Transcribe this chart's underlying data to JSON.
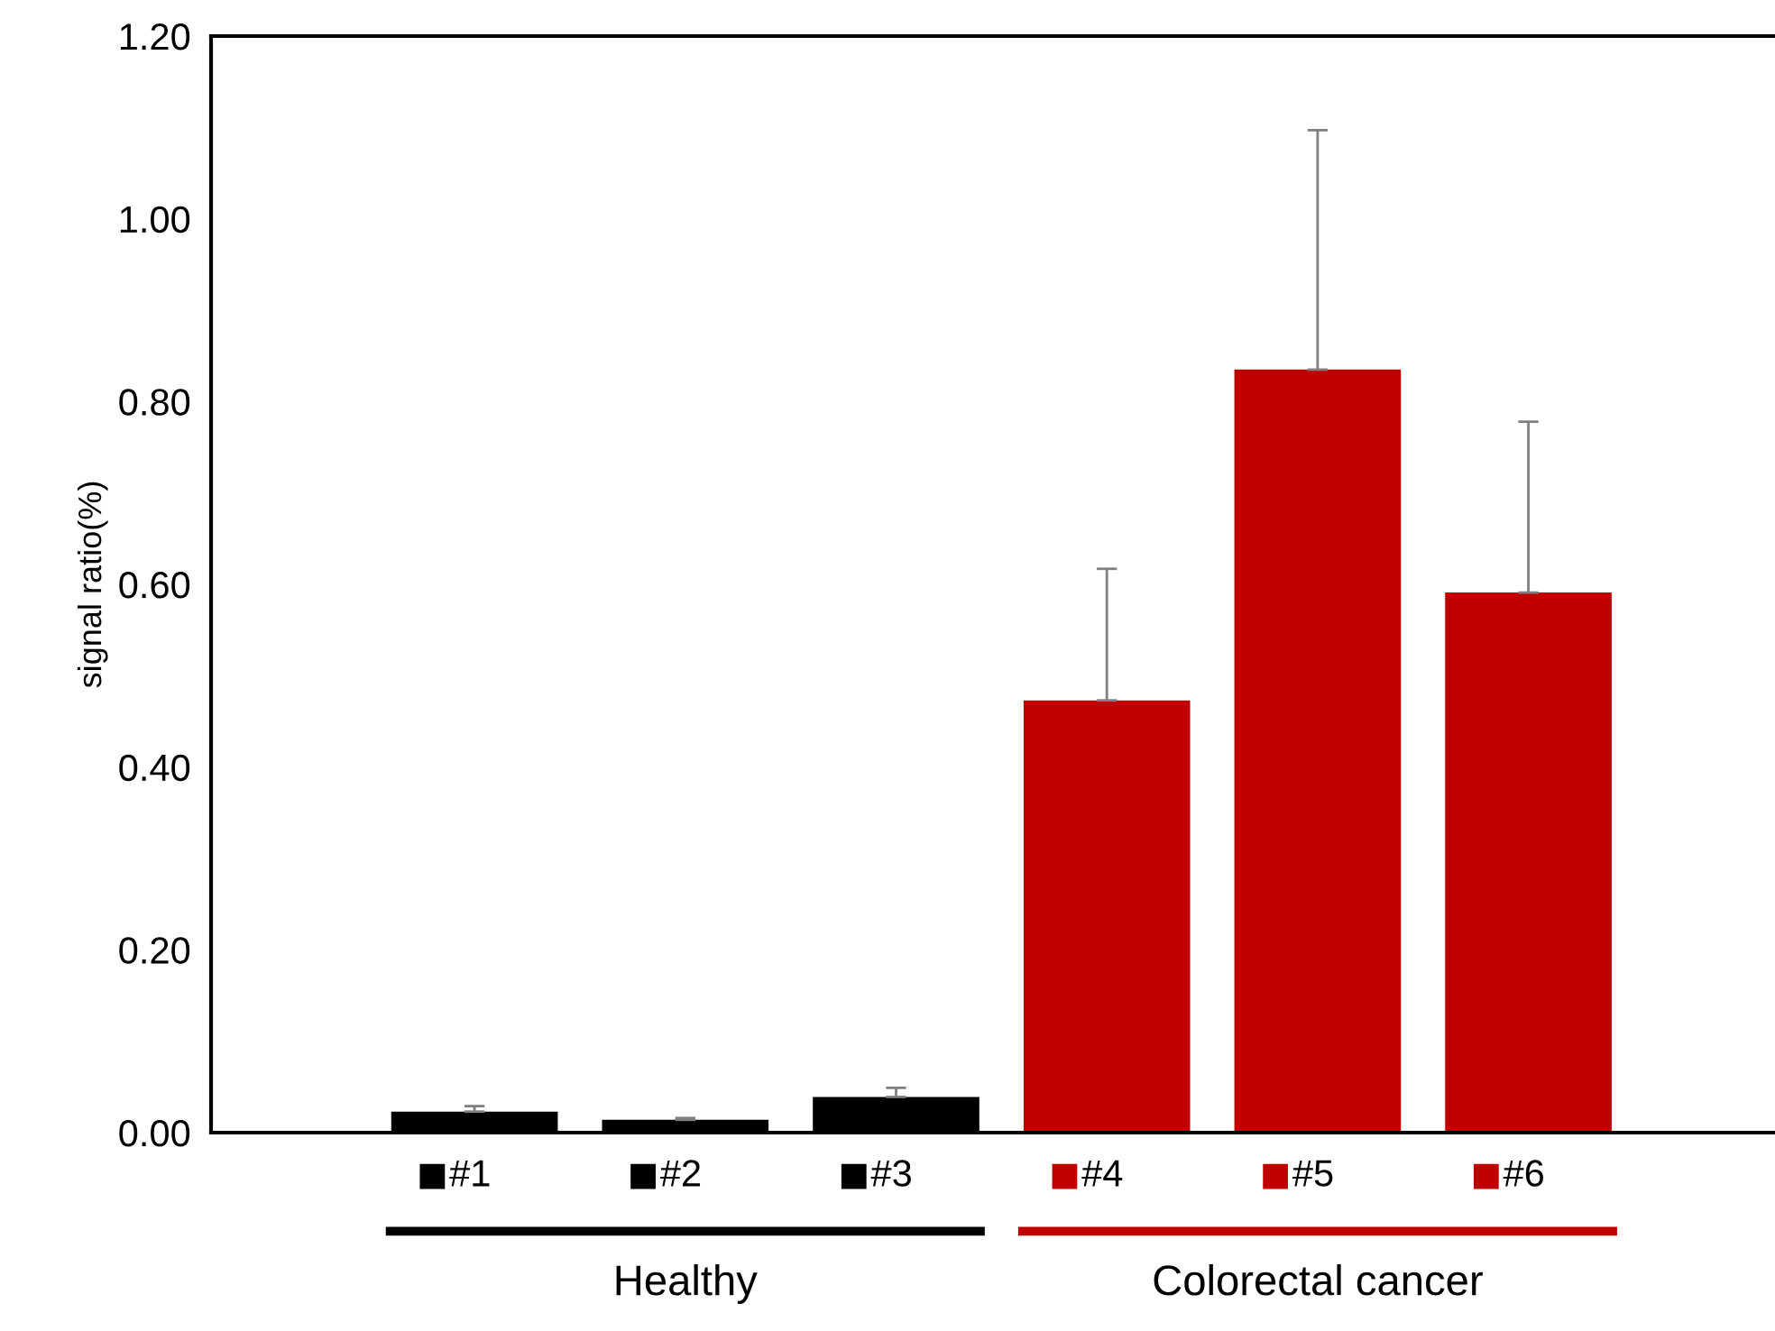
{
  "chart_data": {
    "type": "bar",
    "ylabel": "signal ratio(%)",
    "categories": [
      "#1",
      "#2",
      "#3",
      "#4",
      "#5",
      "#6"
    ],
    "values": [
      0.023,
      0.014,
      0.039,
      0.473,
      0.835,
      0.591
    ],
    "errors": [
      [
        0.023,
        0.029
      ],
      [
        0.014,
        0.016
      ],
      [
        0.039,
        0.049
      ],
      [
        0.473,
        0.617
      ],
      [
        0.835,
        1.097
      ],
      [
        0.591,
        0.778
      ]
    ],
    "colors": [
      "#000000",
      "#000000",
      "#000000",
      "#c00000",
      "#c00000",
      "#c00000"
    ],
    "ylim": [
      0,
      1.2
    ],
    "yticks": [
      {
        "value": 0,
        "label": "0.00"
      },
      {
        "value": 0.2,
        "label": "0.20"
      },
      {
        "value": 0.4,
        "label": "0.40"
      },
      {
        "value": 0.6,
        "label": "0.60"
      },
      {
        "value": 0.8,
        "label": "0.80"
      },
      {
        "value": 1.0,
        "label": "1.00"
      },
      {
        "value": 1.2,
        "label": "1.20"
      }
    ],
    "grid": false,
    "legend": false,
    "annotations": [
      "Healthy",
      "Colorectal cancer"
    ]
  }
}
